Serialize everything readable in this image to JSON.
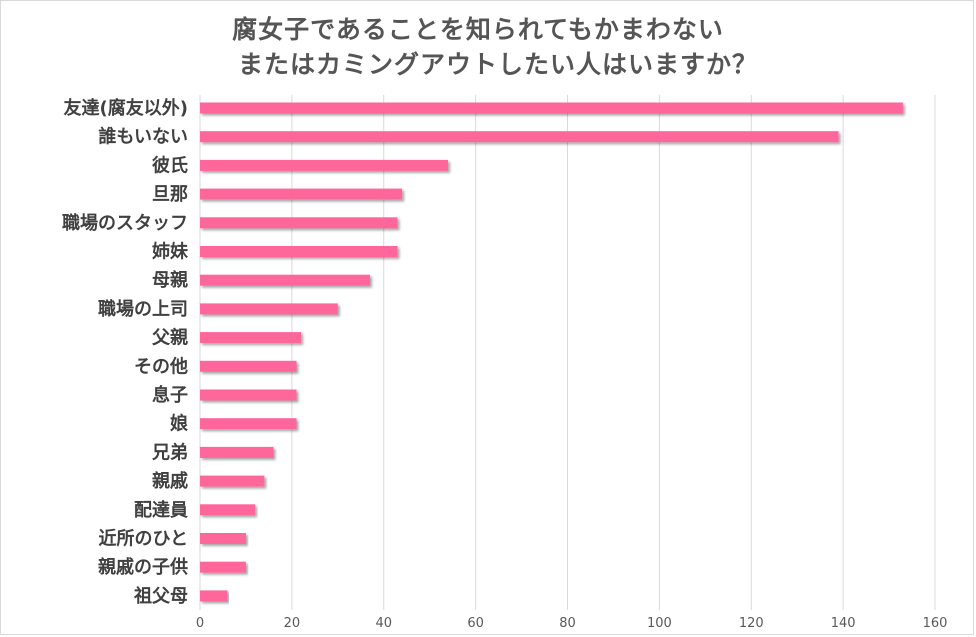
{
  "chart_data": {
    "type": "bar",
    "orientation": "horizontal",
    "title": [
      "腐女子であることを知られてもかまわない",
      "またはカミングアウトしたい人はいますか？"
    ],
    "categories": [
      "友達(腐友以外)",
      "誰もいない",
      "彼氏",
      "旦那",
      "職場のスタッフ",
      "姉妹",
      "母親",
      "職場の上司",
      "父親",
      "その他",
      "息子",
      "娘",
      "兄弟",
      "親戚",
      "配達員",
      "近所のひと",
      "親戚の子供",
      "祖父母"
    ],
    "values": [
      153,
      139,
      54,
      44,
      43,
      43,
      37,
      30,
      22,
      21,
      21,
      21,
      16,
      14,
      12,
      10,
      10,
      6
    ],
    "xlim": [
      0,
      160
    ],
    "xticks": [
      "0",
      "20",
      "40",
      "60",
      "80",
      "100",
      "120",
      "140",
      "160"
    ],
    "grid": true,
    "bar_color": "#ff6699"
  }
}
